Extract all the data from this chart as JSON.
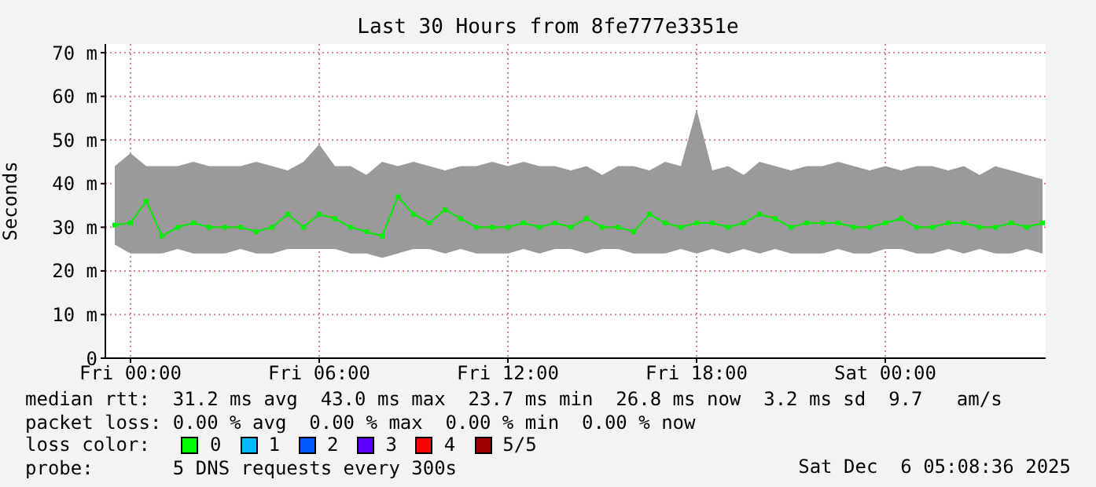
{
  "chart_data": {
    "type": "line",
    "title": "Last 30 Hours from 8fe777e3351e",
    "ylabel": "Seconds",
    "x": [
      "2025-12-04T23:30",
      "2025-12-05T00:00",
      "2025-12-05T00:30",
      "2025-12-05T01:00",
      "2025-12-05T01:30",
      "2025-12-05T02:00",
      "2025-12-05T02:30",
      "2025-12-05T03:00",
      "2025-12-05T03:30",
      "2025-12-05T04:00",
      "2025-12-05T04:30",
      "2025-12-05T05:00",
      "2025-12-05T05:30",
      "2025-12-05T06:00",
      "2025-12-05T06:30",
      "2025-12-05T07:00",
      "2025-12-05T07:30",
      "2025-12-05T08:00",
      "2025-12-05T08:30",
      "2025-12-05T09:00",
      "2025-12-05T09:30",
      "2025-12-05T10:00",
      "2025-12-05T10:30",
      "2025-12-05T11:00",
      "2025-12-05T11:30",
      "2025-12-05T12:00",
      "2025-12-05T12:30",
      "2025-12-05T13:00",
      "2025-12-05T13:30",
      "2025-12-05T14:00",
      "2025-12-05T14:30",
      "2025-12-05T15:00",
      "2025-12-05T15:30",
      "2025-12-05T16:00",
      "2025-12-05T16:30",
      "2025-12-05T17:00",
      "2025-12-05T17:30",
      "2025-12-05T18:00",
      "2025-12-05T18:30",
      "2025-12-05T19:00",
      "2025-12-05T19:30",
      "2025-12-05T20:00",
      "2025-12-05T20:30",
      "2025-12-05T21:00",
      "2025-12-05T21:30",
      "2025-12-05T22:00",
      "2025-12-05T22:30",
      "2025-12-05T23:00",
      "2025-12-05T23:30",
      "2025-12-06T00:00",
      "2025-12-06T00:30",
      "2025-12-06T01:00",
      "2025-12-06T01:30",
      "2025-12-06T02:00",
      "2025-12-06T02:30",
      "2025-12-06T03:00",
      "2025-12-06T03:30",
      "2025-12-06T04:00",
      "2025-12-06T04:30",
      "2025-12-06T05:00"
    ],
    "series": [
      {
        "color": "#00ee00",
        "values": [
          30.5,
          31,
          36,
          28,
          30,
          31,
          30,
          30,
          30,
          29,
          30,
          33,
          30,
          33,
          32,
          30,
          29,
          28,
          37,
          33,
          31,
          34,
          32,
          30,
          30,
          30,
          31,
          30,
          31,
          30,
          32,
          30,
          30,
          29,
          33,
          31,
          30,
          31,
          31,
          30,
          31,
          33,
          32,
          30,
          31,
          31,
          31,
          30,
          30,
          31,
          32,
          30,
          30,
          31,
          31,
          30,
          30,
          31,
          30,
          31
        ],
        "lower": [
          26,
          24,
          24,
          24,
          25,
          24,
          24,
          24,
          25,
          24,
          24,
          25,
          25,
          25,
          25,
          24,
          24,
          23,
          24,
          25,
          25,
          24,
          25,
          24,
          24,
          24,
          25,
          24,
          25,
          25,
          24,
          25,
          25,
          24,
          24,
          24,
          25,
          24,
          25,
          24,
          25,
          24,
          25,
          24,
          24,
          24,
          25,
          24,
          24,
          25,
          25,
          24,
          24,
          25,
          24,
          25,
          24,
          24,
          25,
          24
        ],
        "upper": [
          44,
          47,
          44,
          44,
          44,
          45,
          44,
          44,
          44,
          45,
          44,
          43,
          45,
          49,
          44,
          44,
          42,
          45,
          44,
          45,
          44,
          43,
          44,
          44,
          45,
          44,
          45,
          44,
          44,
          43,
          44,
          42,
          44,
          44,
          43,
          45,
          44,
          57,
          43,
          44,
          42,
          45,
          44,
          43,
          44,
          44,
          45,
          44,
          43,
          44,
          43,
          44,
          44,
          43,
          44,
          42,
          44,
          43,
          42,
          41
        ]
      }
    ],
    "xlim": [
      "2025-12-04T23:12",
      "2025-12-06T05:06"
    ],
    "xticks": [
      {
        "value": "2025-12-05T00:00",
        "label": "Fri 00:00"
      },
      {
        "value": "2025-12-05T06:00",
        "label": "Fri 06:00"
      },
      {
        "value": "2025-12-05T12:00",
        "label": "Fri 12:00"
      },
      {
        "value": "2025-12-05T18:00",
        "label": "Fri 18:00"
      },
      {
        "value": "2025-12-06T00:00",
        "label": "Sat 00:00"
      }
    ],
    "ylim": [
      0,
      72
    ],
    "yticks": [
      0,
      {
        "value": 10,
        "label": "10 m"
      },
      {
        "value": 20,
        "label": "20 m"
      },
      {
        "value": 30,
        "label": "30 m"
      },
      {
        "value": 40,
        "label": "40 m"
      },
      {
        "value": 50,
        "label": "50 m"
      },
      {
        "value": 60,
        "label": "60 m"
      },
      {
        "value": 70,
        "label": "70 m"
      }
    ],
    "grid": true,
    "marker": "square",
    "annotations": [
      "median rtt:  31.2 ms avg  43.0 ms max  23.7 ms min  26.8 ms now  3.2 ms sd  9.7   am/s",
      "packet loss: 0.00 % avg  0.00 % max  0.00 % min  0.00 % now",
      "loss color:",
      "0",
      "1",
      "2",
      "3",
      "4",
      "5/5",
      "probe:       5 DNS requests every 300s",
      "Sat Dec  6 05:08:36 2025"
    ]
  }
}
